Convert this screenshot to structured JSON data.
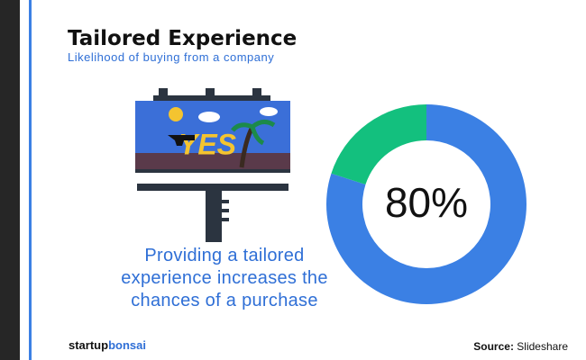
{
  "header": {
    "title": "Tailored Experience",
    "subtitle": "Likelihood of buying from a company"
  },
  "caption": "Providing a tailored experience increases the chances of a purchase",
  "brand": {
    "first": "startup",
    "second": "bonsai"
  },
  "source": {
    "label": "Source:",
    "text": "Slideshare"
  },
  "chart_data": {
    "type": "donut",
    "categories": [
      null,
      null
    ],
    "values": [
      80,
      20
    ],
    "value_labels": [
      "80%",
      null
    ],
    "colors": [
      "#3b80e4",
      "#13c07e"
    ]
  }
}
